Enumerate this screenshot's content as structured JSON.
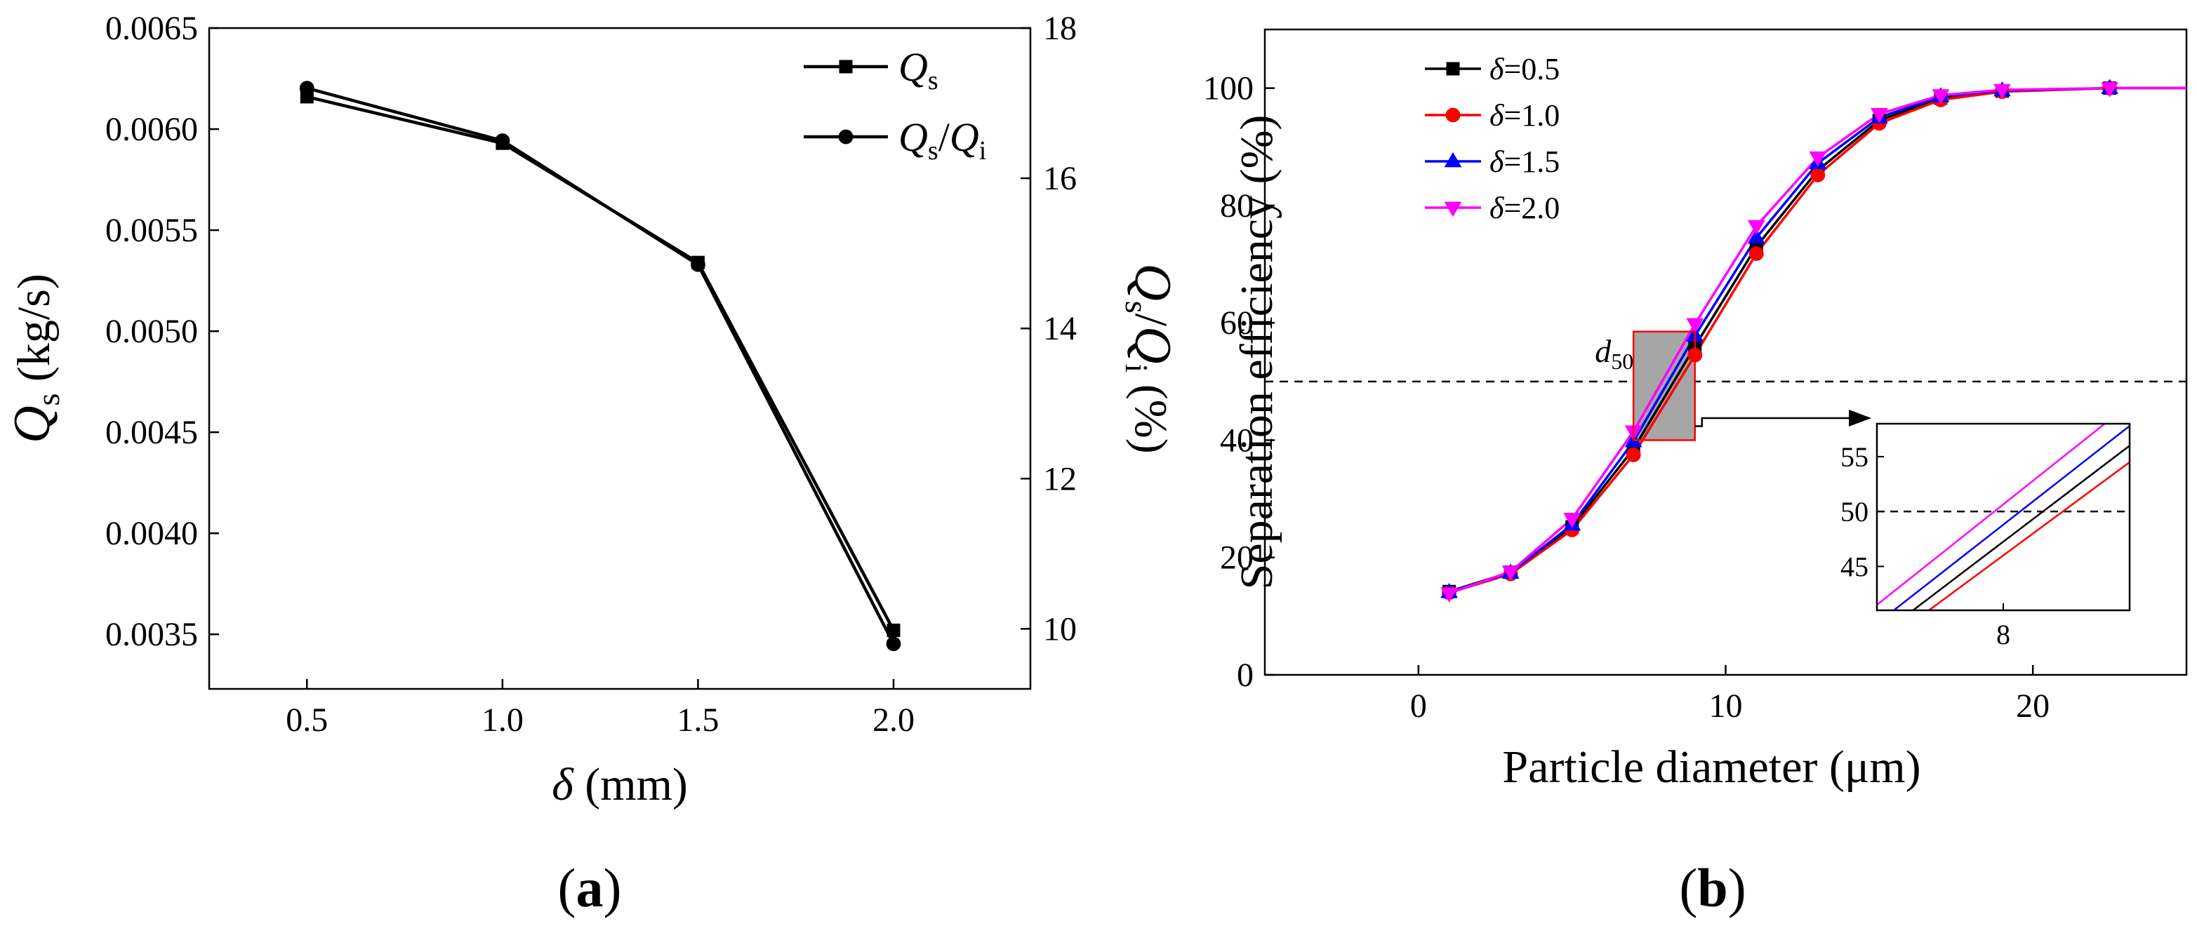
{
  "chart_data": [
    {
      "type": "line",
      "panel_label": "(a)",
      "xlabel": {
        "symbol": "δ",
        "unit": " (mm)"
      },
      "ylabel": {
        "symbol": "Q",
        "sub": "s",
        "unit": " (kg/s)"
      },
      "y2label": {
        "sym1": "Q",
        "sub1": "s",
        "slash": "/",
        "sym2": "Q",
        "sub2": "i",
        "unit": " (%)"
      },
      "x_ticks": [
        "0.5",
        "1.0",
        "1.5",
        "2.0"
      ],
      "x_tick_values": [
        0.5,
        1.0,
        1.5,
        2.0
      ],
      "xlim": [
        0.25,
        2.35
      ],
      "y_ticks": [
        "0.0035",
        "0.0040",
        "0.0045",
        "0.0050",
        "0.0055",
        "0.0060",
        "0.0065"
      ],
      "y_tick_values": [
        0.0035,
        0.004,
        0.0045,
        0.005,
        0.0055,
        0.006,
        0.0065
      ],
      "ylim": [
        0.00323,
        0.0065
      ],
      "y2_ticks": [
        "10",
        "12",
        "14",
        "16",
        "18"
      ],
      "y2_tick_values": [
        10,
        12,
        14,
        16,
        18
      ],
      "y2lim": [
        9.2,
        18.0
      ],
      "series": [
        {
          "name": "Q_s",
          "legend": {
            "sym": "Q",
            "sub": "s"
          },
          "axis": "left",
          "marker": "square",
          "color": "#000000",
          "x": [
            0.5,
            1.0,
            1.5,
            2.0
          ],
          "values": [
            0.00616,
            0.00593,
            0.00534,
            0.00352
          ]
        },
        {
          "name": "Q_s/Q_i",
          "legend": {
            "sym1": "Q",
            "sub1": "s",
            "slash": "/",
            "sym2": "Q",
            "sub2": "i"
          },
          "axis": "right",
          "marker": "circle",
          "color": "#000000",
          "x": [
            0.5,
            1.0,
            1.5,
            2.0
          ],
          "values": [
            17.2,
            16.5,
            14.85,
            9.8
          ]
        }
      ]
    },
    {
      "type": "line",
      "panel_label": "(b)",
      "xlabel": "Particle diameter (μm)",
      "ylabel": "Separation efficiency (%)",
      "x_ticks": [
        "0",
        "10",
        "20"
      ],
      "x_tick_values": [
        0,
        10,
        20
      ],
      "xlim": [
        -5,
        25
      ],
      "y_ticks": [
        "0",
        "20",
        "40",
        "60",
        "80",
        "100"
      ],
      "y_tick_values": [
        0,
        20,
        40,
        60,
        80,
        100
      ],
      "ylim": [
        0,
        110
      ],
      "reference_line": {
        "y": 50,
        "label": {
          "sym": "d",
          "sub": "50"
        }
      },
      "highlight_box": {
        "x": [
          7,
          9
        ],
        "y": [
          40,
          58.5
        ]
      },
      "x": [
        1,
        3,
        5,
        7,
        9,
        11,
        13,
        15,
        17,
        19,
        22.5,
        25
      ],
      "series": [
        {
          "name": "δ=0.5",
          "legend": {
            "sym": "δ",
            "val": "=0.5"
          },
          "color": "#000000",
          "marker": "square",
          "values": [
            14.2,
            17.5,
            25.2,
            38.5,
            56.0,
            73.0,
            86.0,
            94.5,
            98.3,
            99.5,
            100,
            100
          ]
        },
        {
          "name": "δ=1.0",
          "legend": {
            "sym": "δ",
            "val": "=1.0"
          },
          "color": "#ff0000",
          "marker": "circle",
          "values": [
            14.0,
            17.2,
            24.7,
            37.5,
            54.5,
            71.8,
            85.2,
            94.0,
            98.0,
            99.4,
            100,
            100
          ]
        },
        {
          "name": "δ=1.5",
          "legend": {
            "sym": "δ",
            "val": "=1.5"
          },
          "color": "#0000ff",
          "marker": "triangle-up",
          "values": [
            14.1,
            17.4,
            25.6,
            39.8,
            57.8,
            74.5,
            87.2,
            95.0,
            98.6,
            99.6,
            100,
            100
          ]
        },
        {
          "name": "δ=2.0",
          "legend": {
            "sym": "δ",
            "val": "=2.0"
          },
          "color": "#ff00ff",
          "marker": "triangle-down",
          "values": [
            13.9,
            17.6,
            26.6,
            41.5,
            59.8,
            76.5,
            88.2,
            95.6,
            98.8,
            99.7,
            100,
            100
          ]
        }
      ],
      "inset": {
        "x_ticks": [
          "8"
        ],
        "x_tick_values": [
          8
        ],
        "xlim": [
          7,
          9
        ],
        "y_ticks": [
          "45",
          "50",
          "55"
        ],
        "y_tick_values": [
          45,
          50,
          55
        ],
        "ylim": [
          41,
          58
        ]
      }
    }
  ]
}
